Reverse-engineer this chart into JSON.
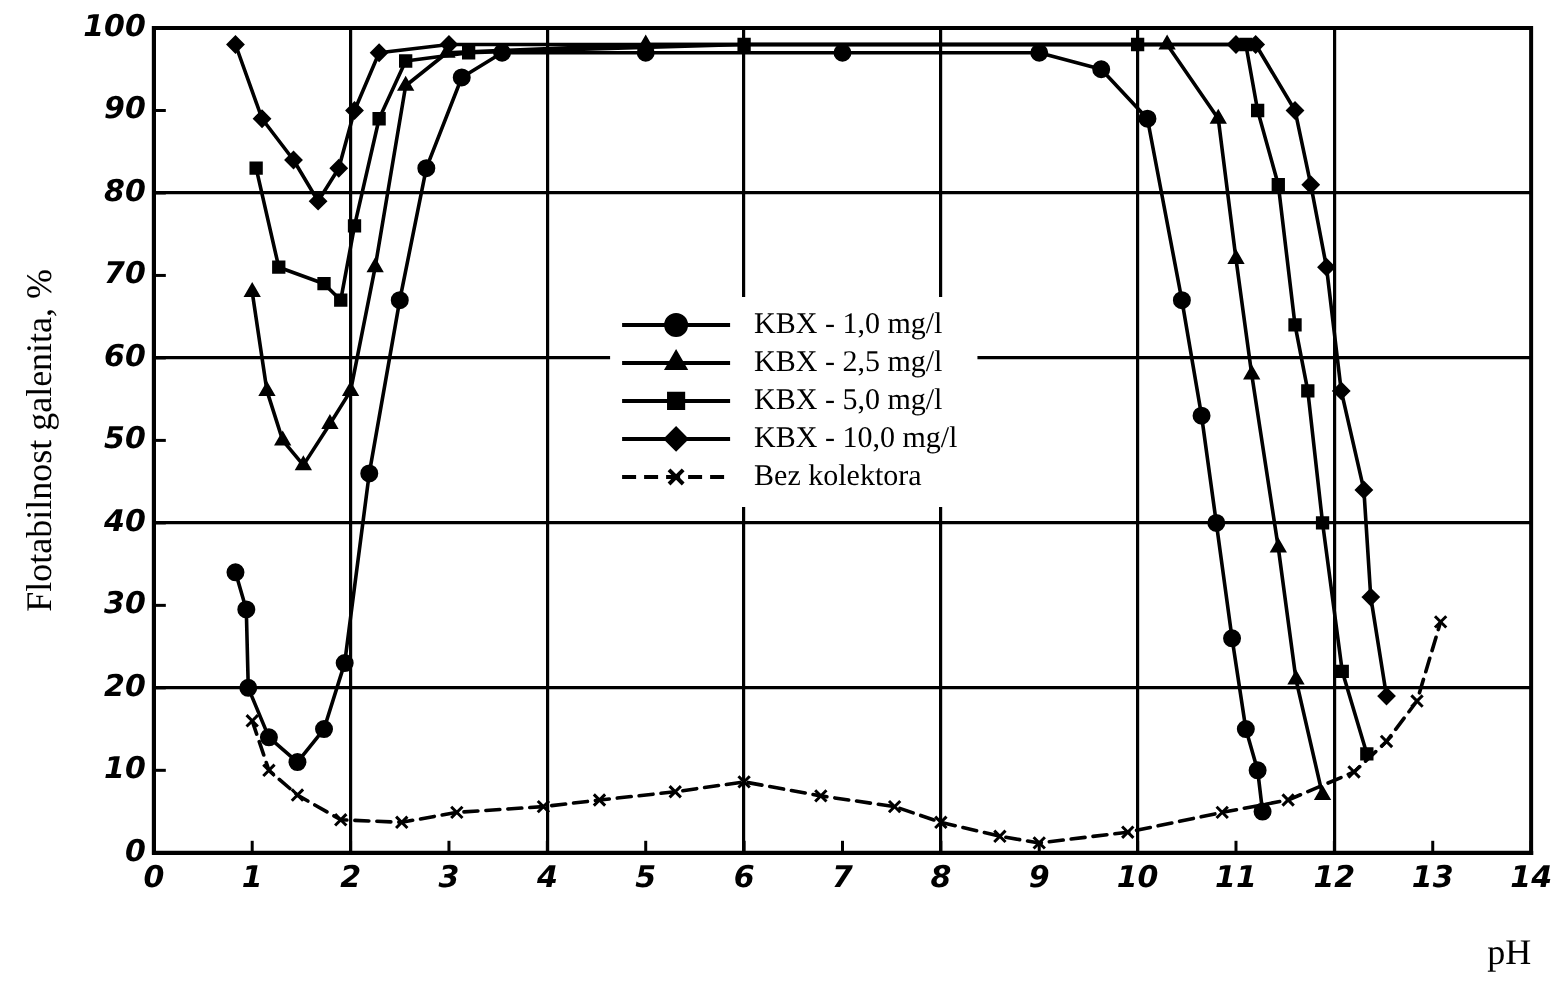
{
  "chart_data": {
    "type": "line",
    "xlabel": "pH",
    "ylabel": "Flotabilnost galenita, %",
    "xlim": [
      0,
      14
    ],
    "xticks": [
      0,
      1,
      2,
      3,
      4,
      5,
      6,
      7,
      8,
      9,
      10,
      11,
      12,
      13,
      14
    ],
    "ylim": [
      0,
      100
    ],
    "yticks": [
      0,
      10,
      20,
      30,
      40,
      50,
      60,
      70,
      80,
      90,
      100
    ],
    "grid": true,
    "legend": "center",
    "series": [
      {
        "name": "KBX - 1,0 mg/l",
        "color": "#000000",
        "marker": "circle",
        "line_style": "solid",
        "x": [
          0.83,
          0.94,
          0.96,
          1.17,
          1.46,
          1.73,
          1.94,
          2.19,
          2.5,
          2.77,
          3.13,
          3.54,
          5,
          7,
          9,
          9.63,
          10.1,
          10.45,
          10.65,
          10.8,
          10.96,
          11.1,
          11.22,
          11.27
        ],
        "values": [
          34,
          29.5,
          20,
          14,
          11,
          15,
          23,
          46,
          67,
          83,
          94,
          97,
          97,
          97,
          97,
          95,
          89,
          67,
          53,
          40,
          26,
          15,
          10,
          5
        ]
      },
      {
        "name": "KBX - 2,5 mg/l",
        "color": "#000000",
        "marker": "triangle",
        "line_style": "solid",
        "x": [
          1.0,
          1.15,
          1.31,
          1.52,
          1.79,
          2.0,
          2.25,
          2.56,
          2.98,
          5,
          10.3,
          10.82,
          11.0,
          11.16,
          11.43,
          11.61,
          11.88
        ],
        "values": [
          68,
          56,
          50,
          47,
          52,
          56,
          71,
          93,
          97,
          98,
          98,
          89,
          72,
          58,
          37,
          21,
          7
        ]
      },
      {
        "name": "KBX - 5,0 mg/l",
        "color": "#000000",
        "marker": "square",
        "line_style": "solid",
        "x": [
          1.04,
          1.27,
          1.73,
          1.9,
          2.04,
          2.29,
          2.56,
          3.2,
          6,
          10,
          11.1,
          11.22,
          11.43,
          11.6,
          11.73,
          11.88,
          12.08,
          12.33
        ],
        "values": [
          83,
          71,
          69,
          67,
          76,
          89,
          96,
          97,
          98,
          98,
          98,
          90,
          81,
          64,
          56,
          40,
          22,
          12
        ]
      },
      {
        "name": "KBX - 10,0 mg/l",
        "color": "#000000",
        "marker": "diamond",
        "line_style": "solid",
        "x": [
          0.83,
          1.1,
          1.42,
          1.67,
          1.88,
          2.04,
          2.29,
          3,
          11,
          11.2,
          11.6,
          11.76,
          11.92,
          12.07,
          12.3,
          12.37,
          12.53
        ],
        "values": [
          98,
          89,
          84,
          79,
          83,
          90,
          97,
          98,
          98,
          98,
          90,
          81,
          71,
          56,
          44,
          31,
          19
        ]
      },
      {
        "name": "Bez kolektora",
        "color": "#000000",
        "marker": "cross",
        "line_style": "dashed",
        "x": [
          1.0,
          1.17,
          1.46,
          1.9,
          2.52,
          3.08,
          3.96,
          4.53,
          5.3,
          6.0,
          6.78,
          7.53,
          8.0,
          8.6,
          9.0,
          9.9,
          10.86,
          11.53,
          12.2,
          12.53,
          12.84,
          13.08
        ],
        "values": [
          16,
          10,
          7,
          4,
          3.7,
          4.9,
          5.6,
          6.4,
          7.4,
          8.6,
          6.9,
          5.6,
          3.7,
          2,
          1.2,
          2.5,
          4.9,
          6.4,
          9.8,
          13.5,
          18.4,
          28
        ]
      }
    ]
  }
}
